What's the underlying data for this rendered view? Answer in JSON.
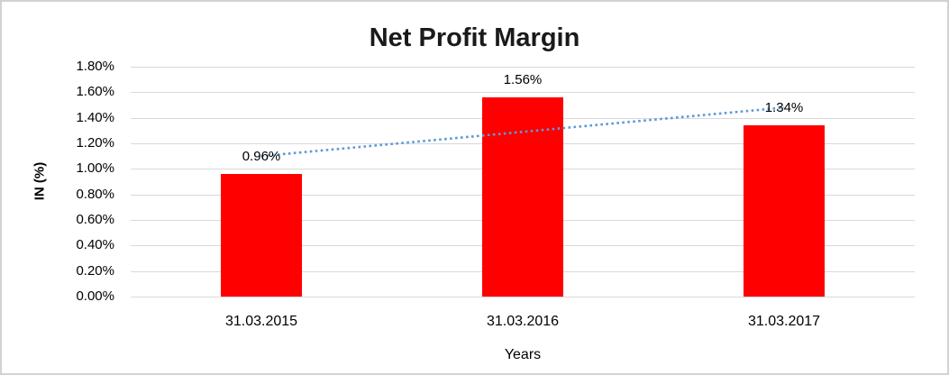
{
  "chart_data": {
    "type": "bar",
    "title": "Net Profit Margin",
    "xlabel": "Years",
    "ylabel": "IN (%)",
    "categories": [
      "31.03.2015",
      "31.03.2016",
      "31.03.2017"
    ],
    "values": [
      0.96,
      1.56,
      1.34
    ],
    "data_labels": [
      "0.96%",
      "1.56%",
      "1.34%"
    ],
    "ylim": [
      0,
      1.8
    ],
    "ytick_labels": [
      "1.80%",
      "1.60%",
      "1.40%",
      "1.20%",
      "1.00%",
      "0.80%",
      "0.60%",
      "0.40%",
      "0.20%",
      "0.00%"
    ],
    "grid": true,
    "legend": "none",
    "bar_color": "#ff0000",
    "gridline_color": "#d9d9d9",
    "frame_border_color": "#d2d2d2",
    "trendline": {
      "type": "linear",
      "style": "dotted",
      "color": "#5b9bd5",
      "start_value": 1.1,
      "end_value": 1.48
    }
  }
}
